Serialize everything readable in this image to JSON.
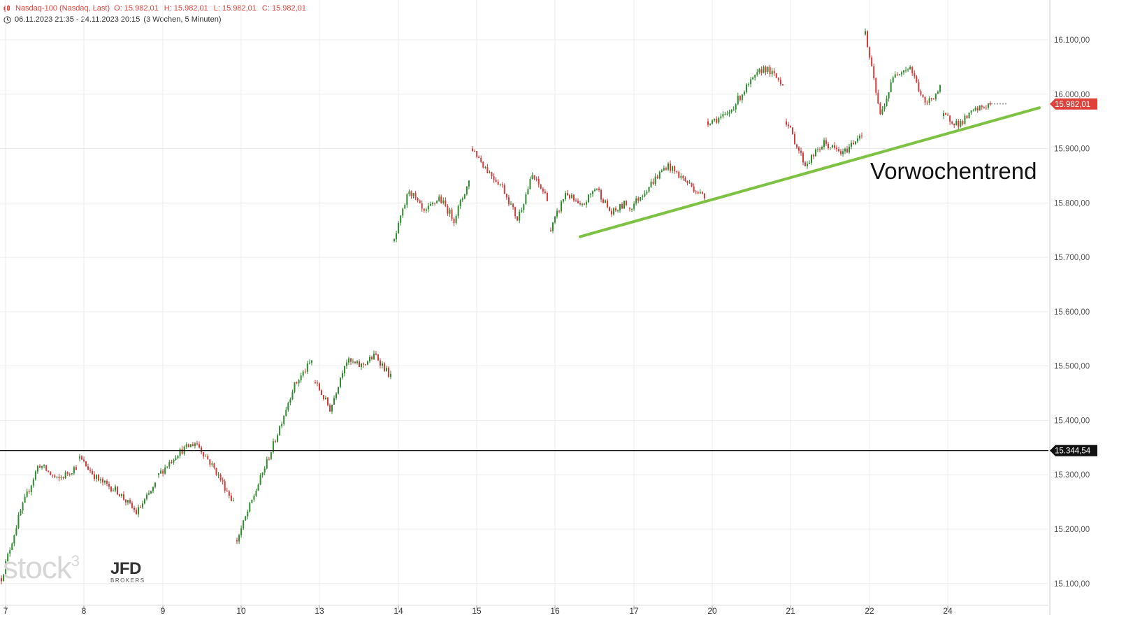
{
  "header": {
    "instrument": "Nasdaq-100 (Nasdaq, Last)",
    "open": "O: 15.982,01",
    "high": "H: 15.982,01",
    "low": "L: 15.982,01",
    "close": "C: 15.982,01",
    "range": "06.11.2023 21:35 - 24.11.2023 20:15",
    "period": "(3 Wochen, 5 Minuten)",
    "instrument_icon": "candlestick-icon",
    "time_icon": "clock-icon"
  },
  "branding": {
    "stock3": "stock",
    "stock3_sup": "3",
    "jfd": "JFD",
    "jfd_sub": "BROKERS"
  },
  "colors": {
    "up": "#2e8b2e",
    "down": "#d33a3a",
    "trend": "#7dc242",
    "accent": "#e0413b",
    "grid": "#ececec"
  },
  "chart_data": {
    "type": "candlestick",
    "x_tick_labels": [
      "7",
      "8",
      "9",
      "10",
      "13",
      "14",
      "15",
      "16",
      "17",
      "20",
      "21",
      "22",
      "24"
    ],
    "y_tick_labels": [
      "16.100,00",
      "16.000,00",
      "15.900,00",
      "15.800,00",
      "15.700,00",
      "15.600,00",
      "15.500,00",
      "15.400,00",
      "15.300,00",
      "15.200,00",
      "15.100,00"
    ],
    "ylim": [
      15080,
      16160
    ],
    "grid": true,
    "last_price": {
      "value": 15982.01,
      "label": "15.982,01"
    },
    "horizontal_line": {
      "value": 15344.54,
      "label": "15.344,54"
    },
    "trendline": {
      "label": "Vorwochentrend",
      "start": [
        "16",
        15738
      ],
      "end": [
        "24",
        15975
      ]
    },
    "price_path": [
      [
        "7",
        15110
      ],
      [
        "7",
        15230
      ],
      [
        "7",
        15320
      ],
      [
        "7",
        15290
      ],
      [
        "7",
        15315
      ],
      [
        "8",
        15330
      ],
      [
        "8",
        15290
      ],
      [
        "8",
        15270
      ],
      [
        "8",
        15230
      ],
      [
        "8",
        15280
      ],
      [
        "9",
        15300
      ],
      [
        "9",
        15340
      ],
      [
        "9",
        15360
      ],
      [
        "9",
        15310
      ],
      [
        "9",
        15250
      ],
      [
        "10",
        15180
      ],
      [
        "10",
        15270
      ],
      [
        "10",
        15360
      ],
      [
        "10",
        15460
      ],
      [
        "10",
        15510
      ],
      [
        "13",
        15470
      ],
      [
        "13",
        15420
      ],
      [
        "13",
        15510
      ],
      [
        "13",
        15500
      ],
      [
        "13",
        15520
      ],
      [
        "13",
        15480
      ],
      [
        "14",
        15730
      ],
      [
        "14",
        15825
      ],
      [
        "14",
        15780
      ],
      [
        "14",
        15810
      ],
      [
        "14",
        15770
      ],
      [
        "14",
        15840
      ],
      [
        "15",
        15900
      ],
      [
        "15",
        15860
      ],
      [
        "15",
        15830
      ],
      [
        "15",
        15770
      ],
      [
        "15",
        15850
      ],
      [
        "15",
        15810
      ],
      [
        "16",
        15750
      ],
      [
        "16",
        15820
      ],
      [
        "16",
        15790
      ],
      [
        "16",
        15830
      ],
      [
        "16",
        15780
      ],
      [
        "16",
        15800
      ],
      [
        "17",
        15790
      ],
      [
        "17",
        15830
      ],
      [
        "17",
        15870
      ],
      [
        "17",
        15840
      ],
      [
        "17",
        15810
      ],
      [
        "20",
        15950
      ],
      [
        "20",
        15960
      ],
      [
        "20",
        16010
      ],
      [
        "20",
        16050
      ],
      [
        "20",
        16020
      ],
      [
        "21",
        15950
      ],
      [
        "21",
        15870
      ],
      [
        "21",
        15910
      ],
      [
        "21",
        15890
      ],
      [
        "21",
        15930
      ],
      [
        "22",
        16110
      ],
      [
        "22",
        15960
      ],
      [
        "22",
        16040
      ],
      [
        "22",
        16050
      ],
      [
        "22",
        15980
      ],
      [
        "22",
        16010
      ],
      [
        "24",
        15960
      ],
      [
        "24",
        15945
      ],
      [
        "24",
        15970
      ],
      [
        "24",
        15982
      ]
    ]
  }
}
